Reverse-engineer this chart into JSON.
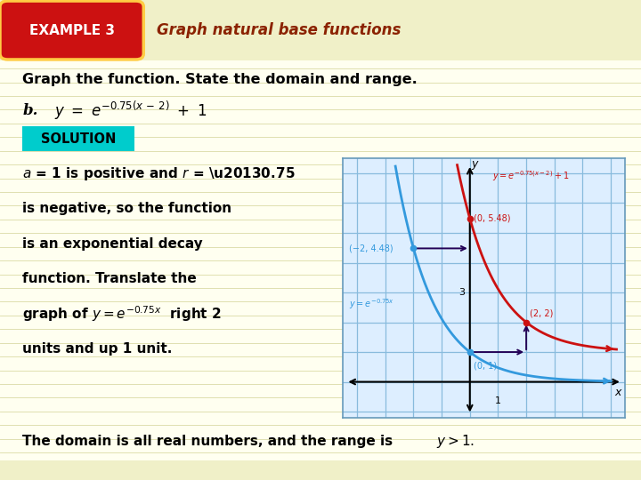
{
  "bg_color": "#fffff0",
  "header_stripe_color": "#f0f0c8",
  "footer_stripe_color": "#f0f0c8",
  "example_box_color": "#cc1111",
  "example_box_text": "EXAMPLE 3",
  "header_text": "Graph natural base functions",
  "header_color": "#8B2200",
  "title_text": "Graph the function. State the domain and range.",
  "solution_bg": "#00cccc",
  "solution_text": "SOLUTION",
  "graph_bg": "#ddeeff",
  "grid_color": "#88bbdd",
  "blue_curve_color": "#3399dd",
  "red_curve_color": "#cc1111",
  "arrow_color": "#220055",
  "xlim": [
    -4.5,
    5.5
  ],
  "ylim": [
    -1.2,
    7.5
  ],
  "x_label": "x",
  "y_label": "y"
}
